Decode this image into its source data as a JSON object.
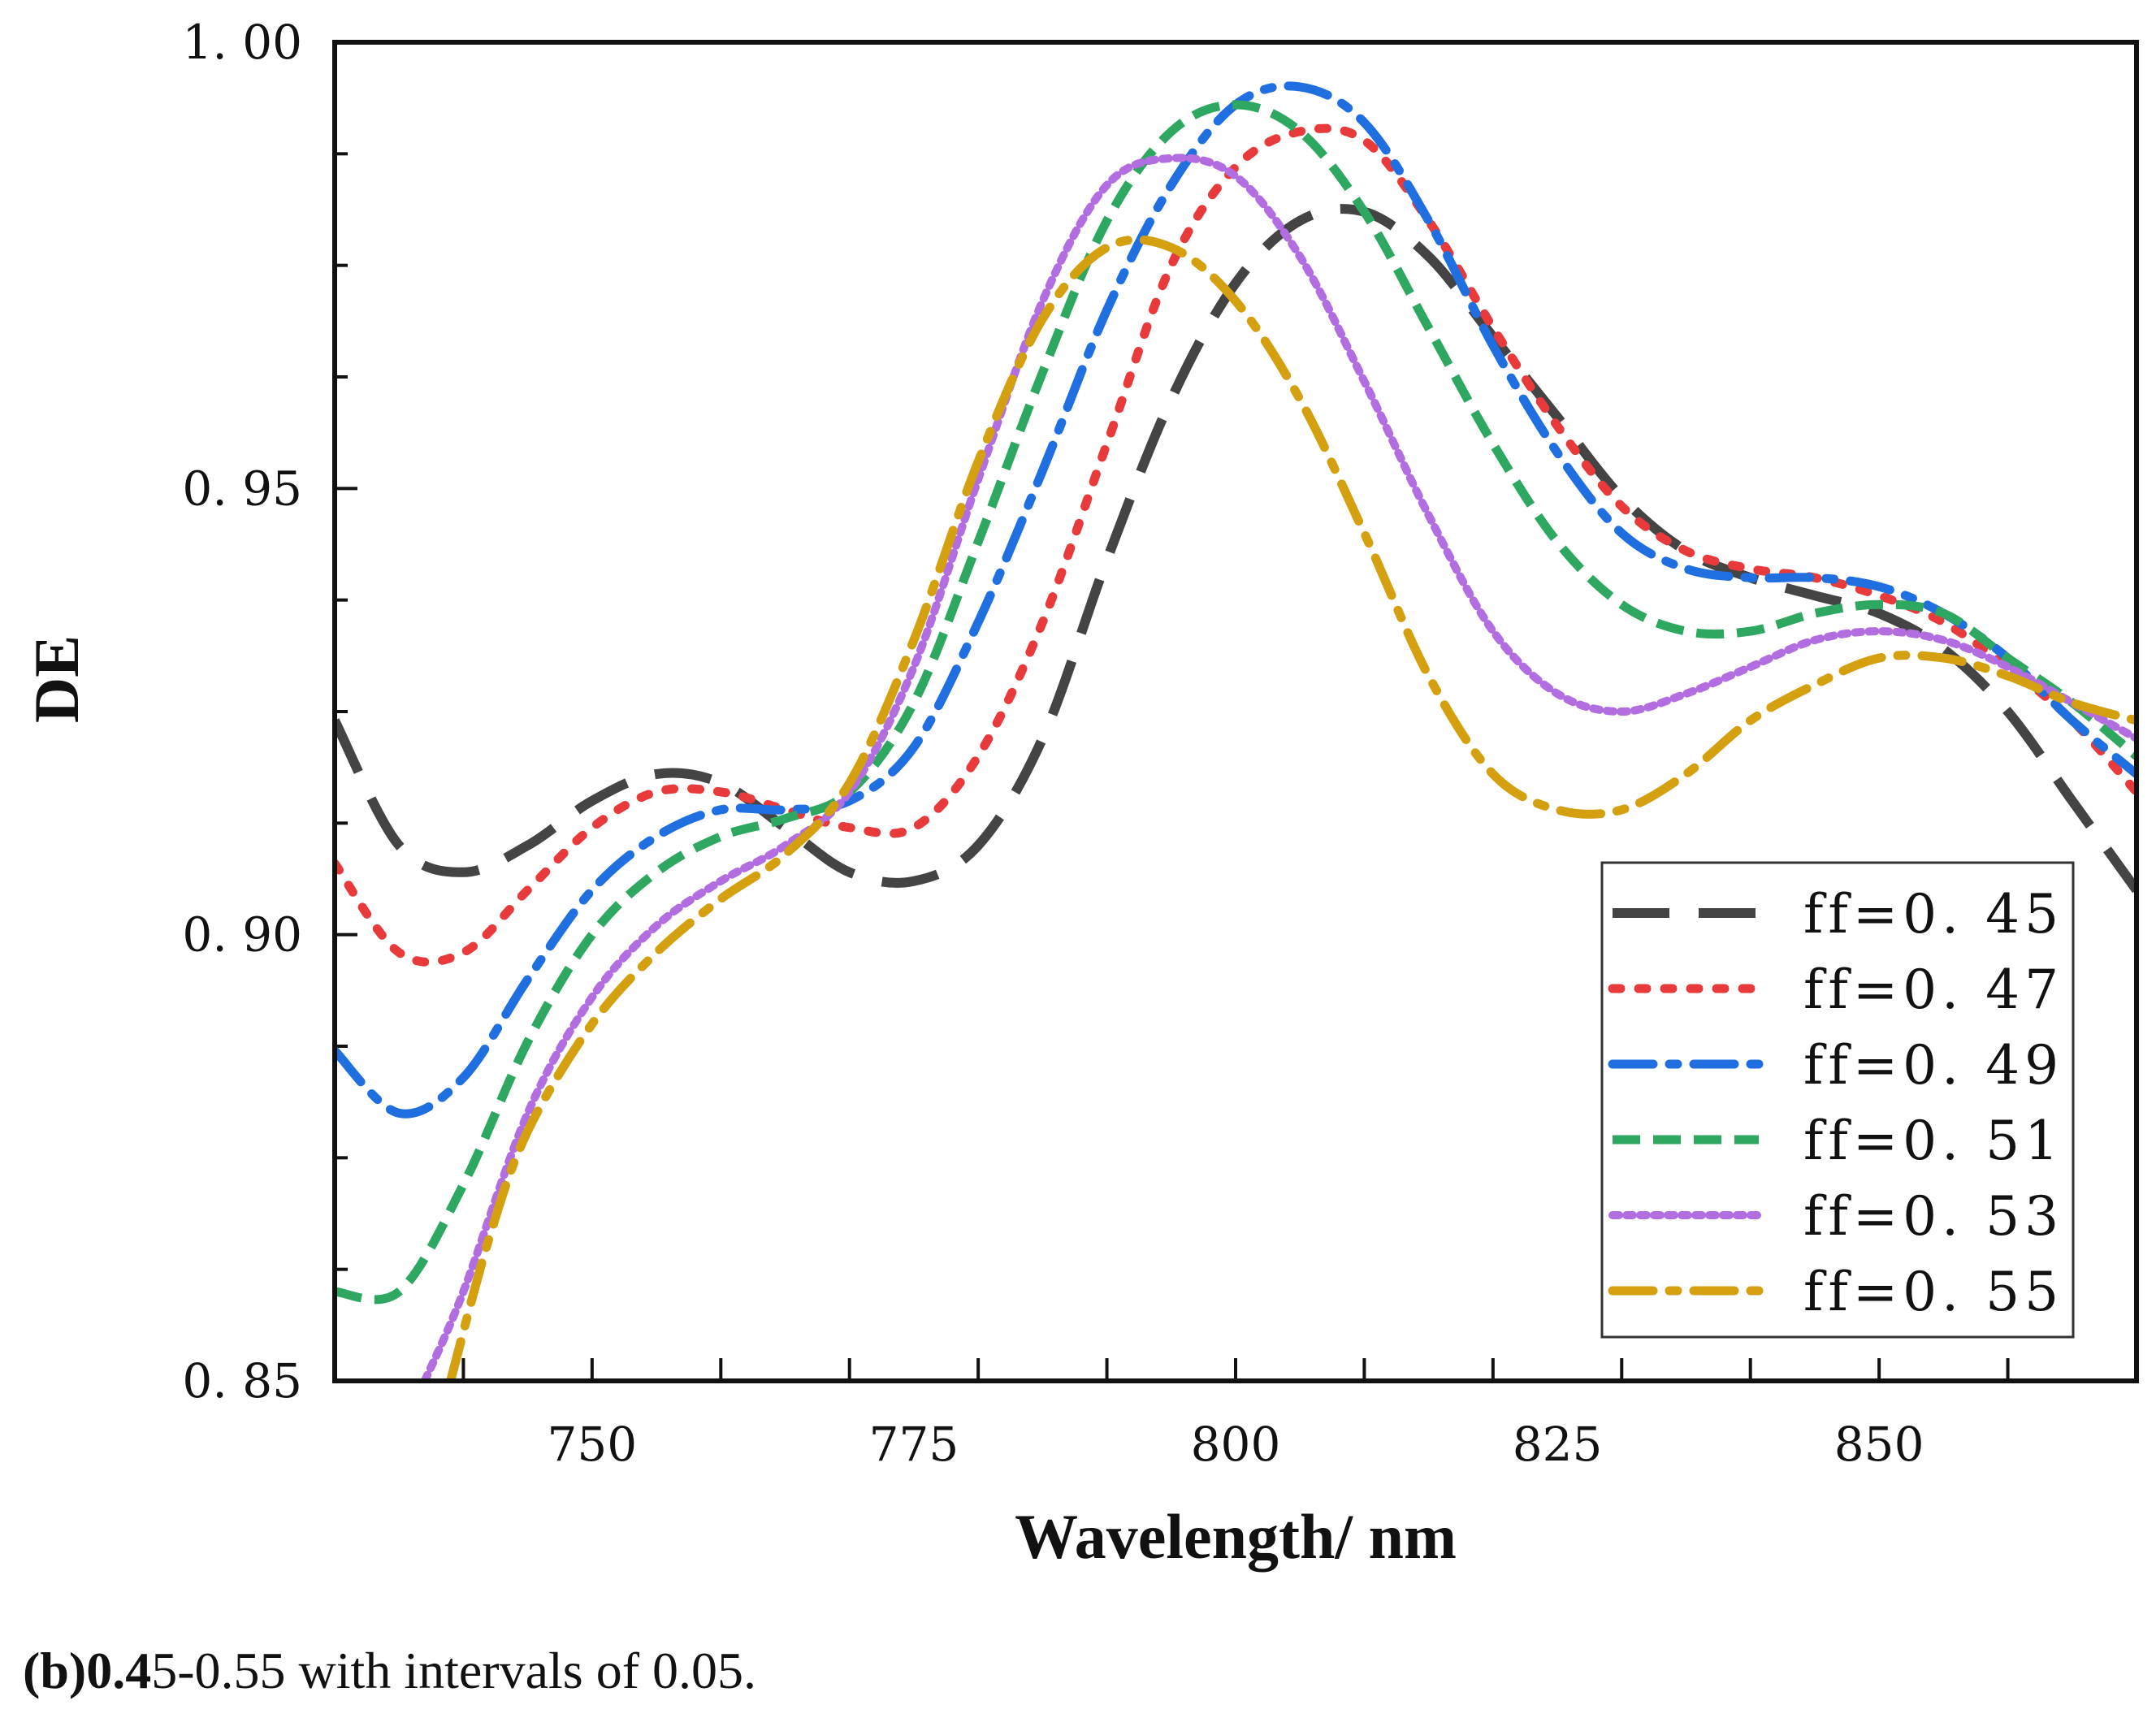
{
  "chart_data": {
    "type": "line",
    "xlabel": "Wavelength/ nm",
    "ylabel": "DE",
    "xlim": [
      730,
      870
    ],
    "ylim": [
      0.85,
      1.0
    ],
    "xticks": [
      750,
      775,
      800,
      825,
      850
    ],
    "xtick_labels": [
      "750",
      "775",
      "800",
      "825",
      "850"
    ],
    "yticks": [
      0.85,
      0.9,
      0.95,
      1.0
    ],
    "ytick_labels": [
      "0. 85",
      "0. 90",
      "0. 95",
      "1. 00"
    ],
    "legend_position": "bottom-right",
    "series": [
      {
        "name": "ff=0. 45",
        "color": "#444444",
        "dash": "long-dash",
        "x": [
          730,
          735,
          740,
          745,
          750,
          755,
          760,
          765,
          770,
          775,
          780,
          785,
          790,
          795,
          800,
          805,
          810,
          815,
          820,
          825,
          830,
          835,
          840,
          845,
          850,
          855,
          860,
          865,
          870
        ],
        "y": [
          0.924,
          0.91,
          0.907,
          0.91,
          0.915,
          0.918,
          0.917,
          0.912,
          0.907,
          0.906,
          0.91,
          0.922,
          0.942,
          0.96,
          0.973,
          0.98,
          0.981,
          0.976,
          0.967,
          0.958,
          0.949,
          0.943,
          0.94,
          0.938,
          0.936,
          0.932,
          0.925,
          0.915,
          0.905
        ]
      },
      {
        "name": "ff=0. 47",
        "color": "#e83a3a",
        "dash": "dotted",
        "x": [
          730,
          735,
          740,
          745,
          750,
          755,
          760,
          765,
          770,
          775,
          780,
          785,
          790,
          795,
          800,
          805,
          810,
          815,
          820,
          825,
          830,
          835,
          840,
          845,
          850,
          855,
          860,
          865,
          870
        ],
        "y": [
          0.908,
          0.898,
          0.898,
          0.905,
          0.912,
          0.916,
          0.916,
          0.914,
          0.912,
          0.912,
          0.92,
          0.935,
          0.955,
          0.975,
          0.986,
          0.99,
          0.989,
          0.98,
          0.968,
          0.957,
          0.948,
          0.943,
          0.941,
          0.94,
          0.938,
          0.935,
          0.93,
          0.924,
          0.916
        ]
      },
      {
        "name": "ff=0. 49",
        "color": "#1f6fe0",
        "dash": "dash-dot",
        "x": [
          730,
          735,
          740,
          745,
          750,
          755,
          760,
          765,
          770,
          775,
          780,
          785,
          790,
          795,
          800,
          805,
          810,
          815,
          820,
          825,
          830,
          835,
          840,
          845,
          850,
          855,
          860,
          865,
          870
        ],
        "y": [
          0.887,
          0.88,
          0.884,
          0.895,
          0.905,
          0.911,
          0.914,
          0.914,
          0.915,
          0.921,
          0.935,
          0.952,
          0.97,
          0.984,
          0.993,
          0.995,
          0.991,
          0.98,
          0.966,
          0.954,
          0.945,
          0.941,
          0.94,
          0.94,
          0.939,
          0.936,
          0.931,
          0.924,
          0.918
        ]
      },
      {
        "name": "ff=0. 51",
        "color": "#2ea860",
        "dash": "dashed",
        "x": [
          730,
          735,
          740,
          745,
          750,
          755,
          760,
          765,
          770,
          775,
          780,
          785,
          790,
          795,
          800,
          805,
          810,
          815,
          820,
          825,
          830,
          835,
          840,
          845,
          850,
          855,
          860,
          865,
          870
        ],
        "y": [
          0.86,
          0.86,
          0.872,
          0.888,
          0.9,
          0.907,
          0.911,
          0.913,
          0.916,
          0.926,
          0.944,
          0.963,
          0.98,
          0.99,
          0.993,
          0.99,
          0.981,
          0.968,
          0.955,
          0.944,
          0.937,
          0.934,
          0.934,
          0.936,
          0.937,
          0.936,
          0.931,
          0.926,
          0.92
        ]
      },
      {
        "name": "ff=0. 53",
        "color": "#b26de0",
        "dash": "dense-dotted",
        "x": [
          737,
          740,
          745,
          750,
          755,
          760,
          765,
          770,
          775,
          780,
          785,
          790,
          795,
          800,
          805,
          810,
          815,
          820,
          825,
          830,
          835,
          840,
          845,
          850,
          855,
          860,
          865,
          870
        ],
        "y": [
          0.85,
          0.86,
          0.88,
          0.893,
          0.901,
          0.906,
          0.91,
          0.916,
          0.93,
          0.951,
          0.971,
          0.984,
          0.987,
          0.985,
          0.976,
          0.962,
          0.947,
          0.934,
          0.927,
          0.925,
          0.927,
          0.93,
          0.933,
          0.934,
          0.933,
          0.93,
          0.926,
          0.922
        ]
      },
      {
        "name": "ff=0. 55",
        "color": "#d4a010",
        "dash": "dash-dot",
        "x": [
          739,
          742,
          745,
          750,
          755,
          760,
          765,
          770,
          775,
          780,
          785,
          790,
          795,
          800,
          805,
          810,
          815,
          820,
          825,
          830,
          835,
          840,
          845,
          850,
          855,
          860,
          865,
          870
        ],
        "y": [
          0.85,
          0.866,
          0.878,
          0.89,
          0.898,
          0.904,
          0.909,
          0.917,
          0.933,
          0.953,
          0.969,
          0.977,
          0.977,
          0.971,
          0.96,
          0.945,
          0.929,
          0.918,
          0.914,
          0.914,
          0.918,
          0.924,
          0.928,
          0.931,
          0.931,
          0.929,
          0.926,
          0.924
        ]
      }
    ]
  },
  "caption": {
    "bold_part": "(b)0.4",
    "rest": "5-0.55 with intervals of 0.05."
  }
}
